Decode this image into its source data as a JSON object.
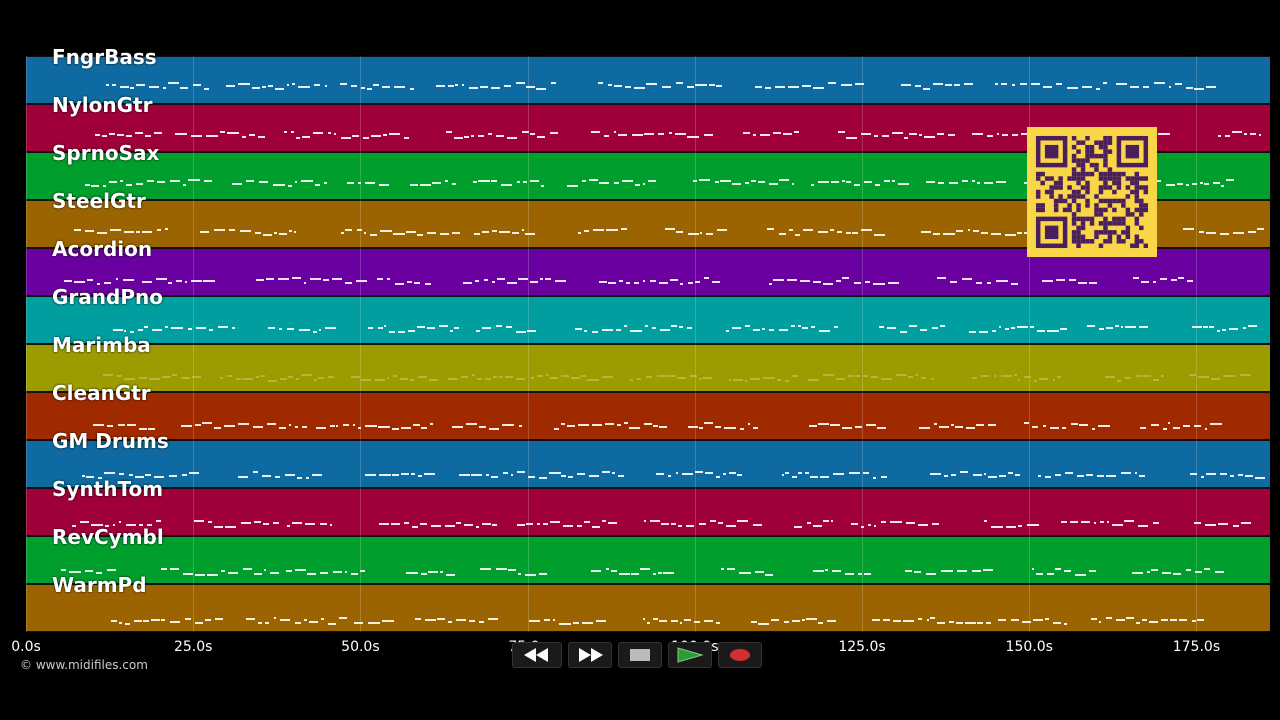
{
  "window": {
    "title": ""
  },
  "tracks": [
    {
      "name": "FngrBass",
      "color": "#0e6aa0"
    },
    {
      "name": "NylonGtr",
      "color": "#a0003a"
    },
    {
      "name": "SprnoSax",
      "color": "#009e2c"
    },
    {
      "name": "SteelGtr",
      "color": "#9c6400"
    },
    {
      "name": "Acordion",
      "color": "#6a00a0"
    },
    {
      "name": "GrandPno",
      "color": "#009e9e"
    },
    {
      "name": "Marimba",
      "color": "#9c9c00"
    },
    {
      "name": "CleanGtr",
      "color": "#a02a00"
    },
    {
      "name": "GM Drums",
      "color": "#0e6aa0"
    },
    {
      "name": "SynthTom",
      "color": "#a0003a"
    },
    {
      "name": "RevCymbl",
      "color": "#009e2c"
    },
    {
      "name": "WarmPd",
      "color": "#9c6400"
    }
  ],
  "timeline": {
    "start_s": 0,
    "end_s": 186,
    "ticks": [
      {
        "value": 0,
        "label": "0.0s"
      },
      {
        "value": 25,
        "label": "25.0s"
      },
      {
        "value": 50,
        "label": "50.0s"
      },
      {
        "value": 75,
        "label": "75.0s"
      },
      {
        "value": 100,
        "label": "100.0s"
      },
      {
        "value": 125,
        "label": "125.0s"
      },
      {
        "value": 150,
        "label": "150.0s"
      },
      {
        "value": 175,
        "label": "175.0s"
      }
    ]
  },
  "copyright": "© www.midifiles.com",
  "transport": {
    "rewind": "rewind-icon",
    "fast_forward": "fast-forward-icon",
    "stop": "stop-icon",
    "play": "play-icon",
    "record": "record-icon",
    "play_color": "#2f9a3a",
    "record_color": "#d23030"
  },
  "qr_code": {
    "color": "#f8d648",
    "module_color": "#4a1f5e"
  }
}
